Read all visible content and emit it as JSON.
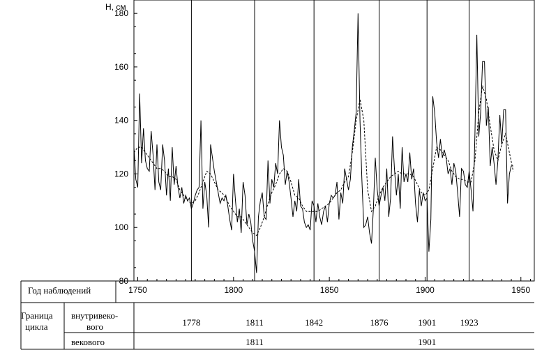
{
  "chart_data": {
    "type": "line",
    "ylabel": "Н, см",
    "xlim": [
      1748,
      1957
    ],
    "ylim": [
      80,
      185
    ],
    "x_ticks": [
      1750,
      1800,
      1850,
      1900,
      1950
    ],
    "y_ticks": [
      80,
      100,
      120,
      140,
      160,
      180
    ],
    "cycle_boundaries": [
      1778,
      1811,
      1842,
      1876,
      1901,
      1923
    ],
    "series": [
      {
        "style": "solid",
        "points": [
          [
            1748,
            130
          ],
          [
            1749,
            118
          ],
          [
            1750,
            115
          ],
          [
            1751,
            150
          ],
          [
            1752,
            124
          ],
          [
            1753,
            137
          ],
          [
            1754,
            125
          ],
          [
            1755,
            122
          ],
          [
            1756,
            121
          ],
          [
            1757,
            136
          ],
          [
            1758,
            127
          ],
          [
            1759,
            114
          ],
          [
            1760,
            131
          ],
          [
            1761,
            117
          ],
          [
            1762,
            114
          ],
          [
            1763,
            131
          ],
          [
            1764,
            125
          ],
          [
            1765,
            112
          ],
          [
            1766,
            122
          ],
          [
            1767,
            110
          ],
          [
            1768,
            130
          ],
          [
            1769,
            116
          ],
          [
            1770,
            123
          ],
          [
            1771,
            115
          ],
          [
            1772,
            111
          ],
          [
            1773,
            115
          ],
          [
            1774,
            109
          ],
          [
            1775,
            112
          ],
          [
            1776,
            110
          ],
          [
            1777,
            111
          ],
          [
            1778,
            107
          ],
          [
            1779,
            109
          ],
          [
            1780,
            112
          ],
          [
            1781,
            114
          ],
          [
            1782,
            115
          ],
          [
            1783,
            140
          ],
          [
            1784,
            107
          ],
          [
            1785,
            117
          ],
          [
            1786,
            112
          ],
          [
            1787,
            100
          ],
          [
            1788,
            131
          ],
          [
            1789,
            126
          ],
          [
            1790,
            121
          ],
          [
            1791,
            117
          ],
          [
            1792,
            113
          ],
          [
            1793,
            109
          ],
          [
            1794,
            111
          ],
          [
            1795,
            110
          ],
          [
            1796,
            112
          ],
          [
            1797,
            108
          ],
          [
            1798,
            103
          ],
          [
            1799,
            99
          ],
          [
            1800,
            120
          ],
          [
            1801,
            110
          ],
          [
            1802,
            102
          ],
          [
            1803,
            107
          ],
          [
            1804,
            98
          ],
          [
            1805,
            117
          ],
          [
            1806,
            112
          ],
          [
            1807,
            101
          ],
          [
            1808,
            105
          ],
          [
            1809,
            102
          ],
          [
            1810,
            95
          ],
          [
            1811,
            91
          ],
          [
            1812,
            83
          ],
          [
            1813,
            104
          ],
          [
            1814,
            110
          ],
          [
            1815,
            113
          ],
          [
            1816,
            104
          ],
          [
            1817,
            103
          ],
          [
            1818,
            125
          ],
          [
            1819,
            109
          ],
          [
            1820,
            118
          ],
          [
            1821,
            115
          ],
          [
            1822,
            124
          ],
          [
            1823,
            120
          ],
          [
            1824,
            140
          ],
          [
            1825,
            130
          ],
          [
            1826,
            127
          ],
          [
            1827,
            116
          ],
          [
            1828,
            121
          ],
          [
            1829,
            117
          ],
          [
            1830,
            111
          ],
          [
            1831,
            104
          ],
          [
            1832,
            110
          ],
          [
            1833,
            106
          ],
          [
            1834,
            118
          ],
          [
            1835,
            108
          ],
          [
            1836,
            107
          ],
          [
            1837,
            102
          ],
          [
            1838,
            100
          ],
          [
            1839,
            101
          ],
          [
            1840,
            99
          ],
          [
            1841,
            110
          ],
          [
            1842,
            108
          ],
          [
            1843,
            102
          ],
          [
            1844,
            109
          ],
          [
            1845,
            104
          ],
          [
            1846,
            101
          ],
          [
            1847,
            106
          ],
          [
            1848,
            108
          ],
          [
            1849,
            102
          ],
          [
            1850,
            109
          ],
          [
            1851,
            112
          ],
          [
            1852,
            111
          ],
          [
            1853,
            112
          ],
          [
            1854,
            117
          ],
          [
            1855,
            103
          ],
          [
            1856,
            113
          ],
          [
            1857,
            109
          ],
          [
            1858,
            122
          ],
          [
            1859,
            118
          ],
          [
            1860,
            114
          ],
          [
            1861,
            118
          ],
          [
            1862,
            130
          ],
          [
            1863,
            136
          ],
          [
            1864,
            143
          ],
          [
            1865,
            180
          ],
          [
            1866,
            140
          ],
          [
            1867,
            118
          ],
          [
            1868,
            100
          ],
          [
            1869,
            101
          ],
          [
            1870,
            104
          ],
          [
            1871,
            98
          ],
          [
            1872,
            94
          ],
          [
            1873,
            107
          ],
          [
            1874,
            126
          ],
          [
            1875,
            114
          ],
          [
            1876,
            108
          ],
          [
            1877,
            112
          ],
          [
            1878,
            115
          ],
          [
            1879,
            110
          ],
          [
            1880,
            122
          ],
          [
            1881,
            104
          ],
          [
            1882,
            111
          ],
          [
            1883,
            134
          ],
          [
            1884,
            122
          ],
          [
            1885,
            112
          ],
          [
            1886,
            120
          ],
          [
            1887,
            107
          ],
          [
            1888,
            130
          ],
          [
            1889,
            117
          ],
          [
            1890,
            120
          ],
          [
            1891,
            117
          ],
          [
            1892,
            128
          ],
          [
            1893,
            118
          ],
          [
            1894,
            122
          ],
          [
            1895,
            109
          ],
          [
            1896,
            102
          ],
          [
            1897,
            114
          ],
          [
            1898,
            108
          ],
          [
            1899,
            113
          ],
          [
            1900,
            110
          ],
          [
            1901,
            111
          ],
          [
            1902,
            91
          ],
          [
            1903,
            103
          ],
          [
            1904,
            149
          ],
          [
            1905,
            143
          ],
          [
            1906,
            132
          ],
          [
            1907,
            126
          ],
          [
            1908,
            133
          ],
          [
            1909,
            126
          ],
          [
            1910,
            129
          ],
          [
            1911,
            126
          ],
          [
            1912,
            120
          ],
          [
            1913,
            122
          ],
          [
            1914,
            116
          ],
          [
            1915,
            124
          ],
          [
            1916,
            121
          ],
          [
            1917,
            113
          ],
          [
            1918,
            104
          ],
          [
            1919,
            122
          ],
          [
            1920,
            121
          ],
          [
            1921,
            116
          ],
          [
            1922,
            115
          ],
          [
            1923,
            121
          ],
          [
            1924,
            114
          ],
          [
            1925,
            106
          ],
          [
            1926,
            135
          ],
          [
            1927,
            172
          ],
          [
            1928,
            134
          ],
          [
            1929,
            143
          ],
          [
            1930,
            162
          ],
          [
            1931,
            162
          ],
          [
            1932,
            138
          ],
          [
            1933,
            145
          ],
          [
            1934,
            123
          ],
          [
            1935,
            130
          ],
          [
            1936,
            124
          ],
          [
            1937,
            116
          ],
          [
            1938,
            125
          ],
          [
            1939,
            142
          ],
          [
            1940,
            131
          ],
          [
            1941,
            144
          ],
          [
            1942,
            144
          ],
          [
            1943,
            109
          ],
          [
            1944,
            120
          ],
          [
            1945,
            123
          ],
          [
            1946,
            123
          ]
        ]
      },
      {
        "style": "dashed",
        "points": [
          [
            1748,
            128
          ],
          [
            1750,
            130
          ],
          [
            1752,
            130
          ],
          [
            1754,
            128
          ],
          [
            1756,
            126
          ],
          [
            1758,
            124
          ],
          [
            1760,
            122
          ],
          [
            1762,
            122
          ],
          [
            1764,
            121
          ],
          [
            1766,
            119
          ],
          [
            1768,
            119
          ],
          [
            1770,
            118
          ],
          [
            1772,
            114
          ],
          [
            1774,
            112
          ],
          [
            1776,
            110
          ],
          [
            1778,
            109
          ],
          [
            1780,
            110
          ],
          [
            1782,
            113
          ],
          [
            1784,
            117
          ],
          [
            1786,
            121
          ],
          [
            1788,
            120
          ],
          [
            1790,
            117
          ],
          [
            1792,
            114
          ],
          [
            1794,
            113
          ],
          [
            1796,
            111
          ],
          [
            1798,
            108
          ],
          [
            1800,
            106
          ],
          [
            1802,
            104
          ],
          [
            1804,
            104
          ],
          [
            1806,
            102
          ],
          [
            1808,
            100
          ],
          [
            1810,
            98
          ],
          [
            1812,
            97
          ],
          [
            1814,
            100
          ],
          [
            1816,
            104
          ],
          [
            1818,
            109
          ],
          [
            1820,
            113
          ],
          [
            1822,
            116
          ],
          [
            1824,
            120
          ],
          [
            1826,
            122
          ],
          [
            1828,
            121
          ],
          [
            1830,
            117
          ],
          [
            1832,
            112
          ],
          [
            1834,
            111
          ],
          [
            1836,
            108
          ],
          [
            1838,
            106
          ],
          [
            1840,
            106
          ],
          [
            1842,
            106
          ],
          [
            1844,
            106
          ],
          [
            1846,
            107
          ],
          [
            1848,
            108
          ],
          [
            1850,
            109
          ],
          [
            1852,
            111
          ],
          [
            1854,
            113
          ],
          [
            1856,
            114
          ],
          [
            1858,
            117
          ],
          [
            1860,
            119
          ],
          [
            1862,
            128
          ],
          [
            1864,
            140
          ],
          [
            1866,
            148
          ],
          [
            1868,
            140
          ],
          [
            1870,
            114
          ],
          [
            1872,
            106
          ],
          [
            1874,
            108
          ],
          [
            1876,
            112
          ],
          [
            1878,
            115
          ],
          [
            1880,
            117
          ],
          [
            1882,
            119
          ],
          [
            1884,
            120
          ],
          [
            1886,
            121
          ],
          [
            1888,
            120
          ],
          [
            1890,
            120
          ],
          [
            1892,
            120
          ],
          [
            1894,
            119
          ],
          [
            1896,
            116
          ],
          [
            1898,
            113
          ],
          [
            1900,
            112
          ],
          [
            1902,
            114
          ],
          [
            1904,
            122
          ],
          [
            1906,
            130
          ],
          [
            1908,
            129
          ],
          [
            1910,
            127
          ],
          [
            1912,
            125
          ],
          [
            1914,
            121
          ],
          [
            1916,
            119
          ],
          [
            1918,
            118
          ],
          [
            1920,
            118
          ],
          [
            1922,
            117
          ],
          [
            1924,
            117
          ],
          [
            1926,
            125
          ],
          [
            1928,
            143
          ],
          [
            1930,
            153
          ],
          [
            1932,
            148
          ],
          [
            1934,
            138
          ],
          [
            1936,
            129
          ],
          [
            1938,
            125
          ],
          [
            1940,
            131
          ],
          [
            1942,
            135
          ],
          [
            1944,
            128
          ],
          [
            1946,
            121
          ]
        ]
      }
    ]
  },
  "table": {
    "header_label": "Год наблюдений",
    "cycle_label_line1": "Граница",
    "cycle_label_line2": "цикла",
    "intra_label_line1": "внутривеко-",
    "intra_label_line2": "вого",
    "secular_label": "векового",
    "intra_values": [
      1778,
      1811,
      1842,
      1876,
      1901,
      1923
    ],
    "secular_values": [
      1811,
      1901
    ]
  }
}
